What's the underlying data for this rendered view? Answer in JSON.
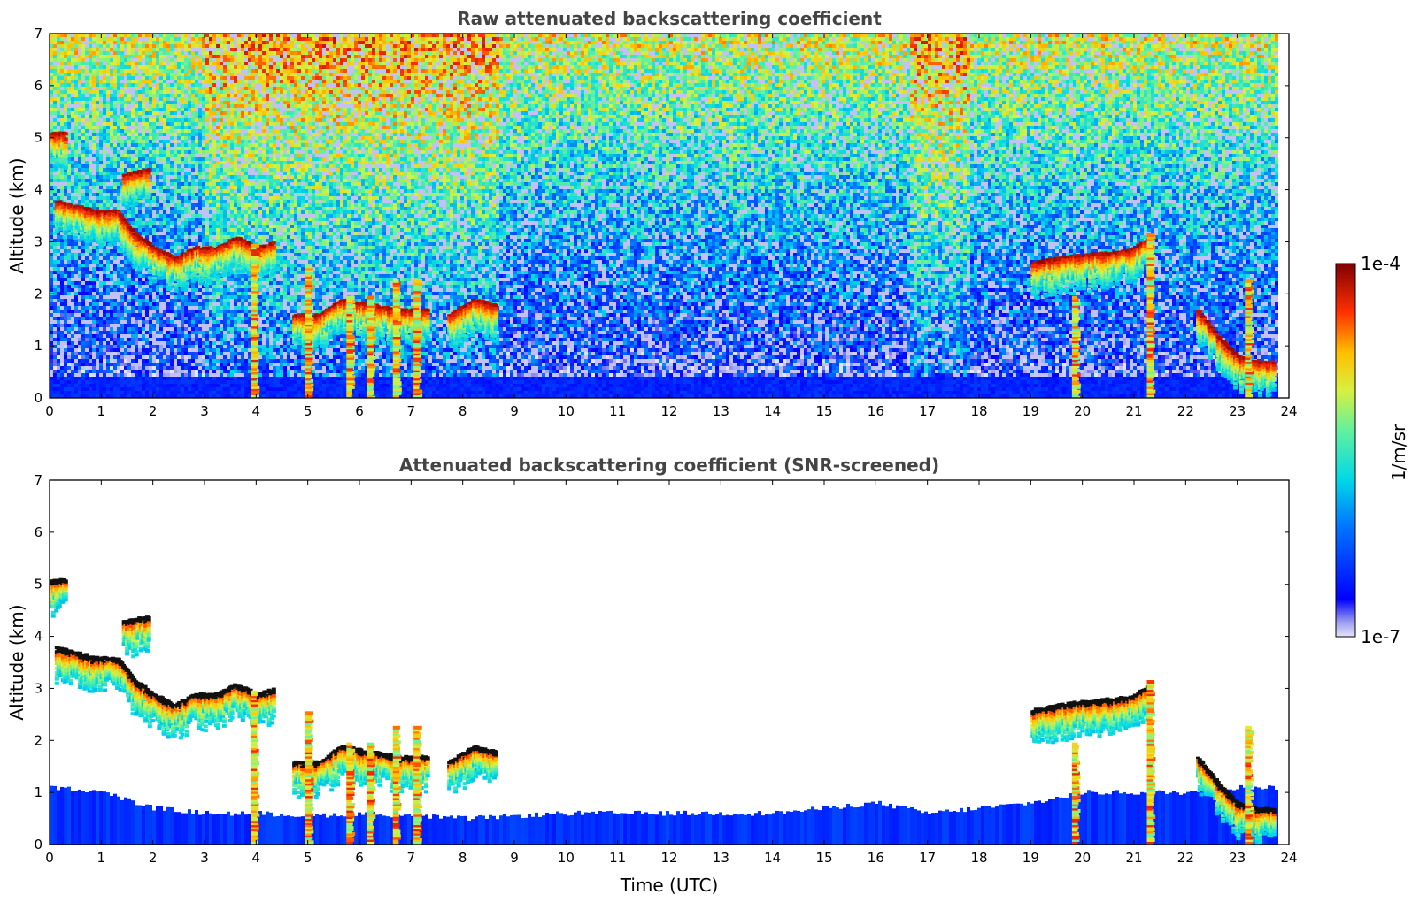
{
  "figure": {
    "colorbar": {
      "label": "1/m/sr",
      "max_label": "1e-4",
      "min_label": "1e-7",
      "scale": "log",
      "colormap": "jet"
    },
    "xlabel": "Time (UTC)"
  },
  "chart_data": [
    {
      "type": "heatmap",
      "title": "Raw attenuated backscattering coefficient",
      "xlabel": "",
      "ylabel": "Altitude (km)",
      "xlim": [
        0,
        24
      ],
      "ylim": [
        0,
        7
      ],
      "x_ticks": [
        "0",
        "1",
        "2",
        "3",
        "4",
        "5",
        "6",
        "7",
        "8",
        "9",
        "10",
        "11",
        "12",
        "13",
        "14",
        "15",
        "16",
        "17",
        "18",
        "19",
        "20",
        "21",
        "22",
        "23",
        "24"
      ],
      "y_ticks": [
        "0",
        "1",
        "2",
        "3",
        "4",
        "5",
        "6",
        "7"
      ],
      "grid": false,
      "features": [
        {
          "kind": "cloud_layer",
          "points": [
            [
              0.1,
              3.8
            ],
            [
              0.5,
              3.7
            ],
            [
              0.9,
              3.6
            ],
            [
              1.3,
              3.6
            ],
            [
              1.6,
              3.2
            ],
            [
              2.0,
              2.9
            ],
            [
              2.4,
              2.7
            ],
            [
              2.8,
              2.9
            ],
            [
              3.2,
              2.9
            ],
            [
              3.6,
              3.1
            ],
            [
              4.0,
              2.9
            ],
            [
              4.3,
              3.0
            ]
          ]
        },
        {
          "kind": "cloud_layer",
          "points": [
            [
              4.7,
              1.6
            ],
            [
              5.2,
              1.6
            ],
            [
              5.6,
              1.9
            ],
            [
              6.2,
              1.8
            ],
            [
              6.8,
              1.7
            ],
            [
              7.3,
              1.7
            ]
          ]
        },
        {
          "kind": "cloud_layer",
          "points": [
            [
              7.7,
              1.6
            ],
            [
              8.2,
              1.9
            ],
            [
              8.6,
              1.8
            ]
          ]
        },
        {
          "kind": "cloud_layer",
          "points": [
            [
              19.0,
              2.6
            ],
            [
              19.5,
              2.7
            ],
            [
              19.9,
              2.75
            ],
            [
              20.4,
              2.8
            ],
            [
              20.9,
              2.85
            ],
            [
              21.3,
              3.1
            ]
          ]
        },
        {
          "kind": "cloud_layer",
          "points": [
            [
              22.2,
              1.7
            ],
            [
              22.6,
              1.2
            ],
            [
              23.0,
              0.8
            ],
            [
              23.4,
              0.7
            ],
            [
              23.7,
              0.7
            ]
          ]
        },
        {
          "kind": "cloud_patch",
          "points": [
            [
              0.0,
              5.1
            ],
            [
              0.3,
              5.1
            ]
          ]
        },
        {
          "kind": "cloud_patch",
          "points": [
            [
              1.4,
              4.3
            ],
            [
              1.9,
              4.4
            ]
          ]
        },
        {
          "kind": "precip_column",
          "x": 3.95,
          "top": 3.0
        },
        {
          "kind": "precip_column",
          "x": 5.0,
          "top": 2.6
        },
        {
          "kind": "precip_column",
          "x": 5.8,
          "top": 2.0
        },
        {
          "kind": "precip_column",
          "x": 6.2,
          "top": 2.0
        },
        {
          "kind": "precip_column",
          "x": 6.7,
          "top": 2.3
        },
        {
          "kind": "precip_column",
          "x": 7.1,
          "top": 2.3
        },
        {
          "kind": "precip_column",
          "x": 19.85,
          "top": 2.0
        },
        {
          "kind": "precip_column",
          "x": 21.3,
          "top": 3.2
        },
        {
          "kind": "precip_column",
          "x": 23.2,
          "top": 2.3
        }
      ]
    },
    {
      "type": "heatmap",
      "title": "Attenuated backscattering coefficient (SNR-screened)",
      "xlabel": "Time (UTC)",
      "ylabel": "Altitude (km)",
      "xlim": [
        0,
        24
      ],
      "ylim": [
        0,
        7
      ],
      "x_ticks": [
        "0",
        "1",
        "2",
        "3",
        "4",
        "5",
        "6",
        "7",
        "8",
        "9",
        "10",
        "11",
        "12",
        "13",
        "14",
        "15",
        "16",
        "17",
        "18",
        "19",
        "20",
        "21",
        "22",
        "23",
        "24"
      ],
      "y_ticks": [
        "0",
        "1",
        "2",
        "3",
        "4",
        "5",
        "6",
        "7"
      ],
      "grid": false,
      "boundary_layer_top": [
        [
          0,
          1.1
        ],
        [
          1,
          1.0
        ],
        [
          2,
          0.7
        ],
        [
          3,
          0.6
        ],
        [
          4,
          0.6
        ],
        [
          5,
          0.55
        ],
        [
          6,
          0.6
        ],
        [
          7,
          0.55
        ],
        [
          8,
          0.5
        ],
        [
          9,
          0.55
        ],
        [
          10,
          0.6
        ],
        [
          11,
          0.6
        ],
        [
          12,
          0.6
        ],
        [
          13,
          0.6
        ],
        [
          14,
          0.6
        ],
        [
          15,
          0.7
        ],
        [
          16,
          0.8
        ],
        [
          17,
          0.6
        ],
        [
          18,
          0.7
        ],
        [
          19,
          0.8
        ],
        [
          20,
          1.0
        ],
        [
          21,
          1.0
        ],
        [
          22,
          1.0
        ],
        [
          23,
          1.1
        ],
        [
          23.8,
          1.1
        ]
      ]
    }
  ]
}
